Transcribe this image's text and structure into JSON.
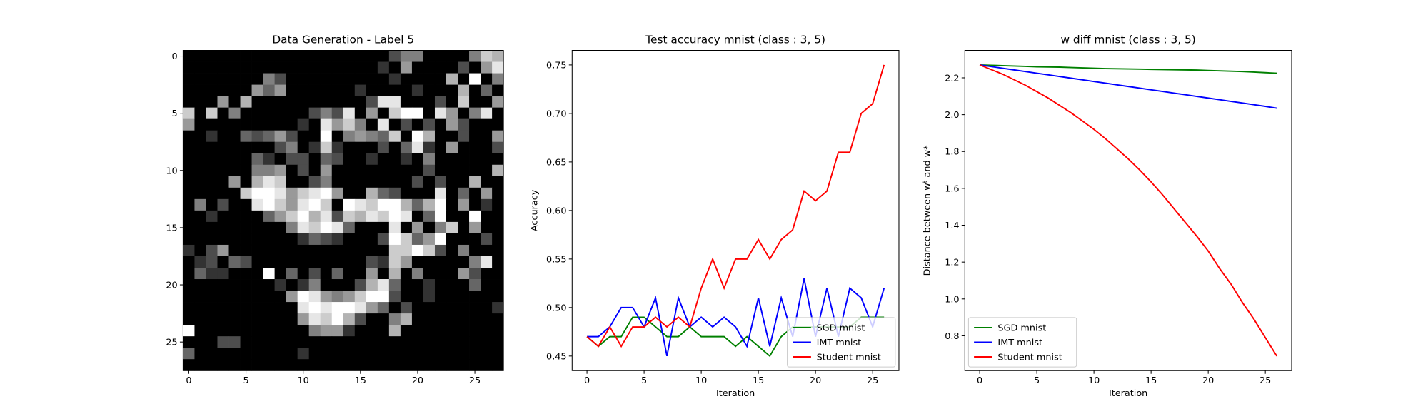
{
  "chart_data": [
    {
      "type": "heatmap",
      "title": "Data Generation - Label 5",
      "colormap": "gray",
      "vlim": [
        0,
        1
      ],
      "xlim": [
        -0.5,
        27.5
      ],
      "ylim": [
        27.5,
        -0.5
      ],
      "xticks": [
        0,
        5,
        10,
        15,
        20,
        25
      ],
      "yticks": [
        0,
        5,
        10,
        15,
        20,
        25
      ],
      "z": [
        [
          0,
          0,
          0,
          0,
          0,
          0,
          0,
          0,
          0,
          0,
          0,
          0,
          0,
          0,
          0,
          0,
          0,
          0,
          0.3,
          0.5,
          0.5,
          0,
          0,
          0,
          0,
          0.5,
          0.8,
          0.7
        ],
        [
          0,
          0,
          0,
          0,
          0,
          0,
          0,
          0,
          0,
          0,
          0,
          0,
          0,
          0,
          0,
          0,
          0,
          0.2,
          0,
          0.6,
          0,
          0,
          0,
          0,
          0.3,
          0,
          0.6,
          0.9
        ],
        [
          0,
          0,
          0,
          0,
          0,
          0,
          0,
          0.5,
          0.3,
          0,
          0,
          0,
          0,
          0,
          0,
          0,
          0,
          0,
          0.2,
          0,
          0,
          0,
          0,
          0.7,
          0,
          1,
          0,
          0.5
        ],
        [
          0,
          0,
          0,
          0,
          0,
          0,
          0.6,
          0.4,
          0.6,
          0,
          0,
          0,
          0,
          0,
          0,
          0.2,
          0,
          0,
          0,
          0,
          0.2,
          0,
          0,
          0,
          0.7,
          0,
          0.4,
          0
        ],
        [
          0,
          0,
          0,
          0.6,
          0,
          0.7,
          0,
          0,
          0,
          0,
          0,
          0,
          0,
          0,
          0,
          0,
          0.3,
          0.9,
          0.9,
          0,
          0,
          0,
          0.3,
          0,
          0.8,
          0,
          0,
          0.6
        ],
        [
          0.8,
          0,
          0.8,
          0,
          0.5,
          0,
          0,
          0,
          0,
          0,
          0,
          0.3,
          0.5,
          0.3,
          0.9,
          0,
          0.6,
          0,
          0.8,
          1,
          1,
          0,
          0.9,
          0.6,
          0,
          0.5,
          0.9,
          0
        ],
        [
          0.6,
          0,
          0,
          0,
          0,
          0,
          0,
          0,
          0,
          0,
          0.2,
          0,
          0.9,
          0.6,
          0.8,
          0.5,
          0,
          0.9,
          0,
          0.3,
          0,
          0.3,
          0,
          0.6,
          0.3,
          0,
          0,
          0
        ],
        [
          0,
          0,
          0.2,
          0,
          0,
          0.4,
          0.3,
          0.4,
          0.6,
          0.3,
          0,
          0,
          1,
          0,
          0.5,
          0.6,
          0.5,
          0.4,
          0.8,
          0,
          1,
          0.7,
          0,
          0,
          0.3,
          0,
          0,
          0.6
        ],
        [
          0,
          0,
          0,
          0,
          0,
          0,
          0,
          0,
          0.3,
          0.5,
          0,
          0.2,
          0.8,
          0.2,
          0,
          0,
          0,
          0.3,
          0,
          0.4,
          0.9,
          0.2,
          0,
          0.6,
          0,
          0,
          0,
          0.3
        ],
        [
          0,
          0,
          0,
          0,
          0,
          0,
          0.4,
          0.2,
          0,
          0.3,
          0.3,
          0,
          0.4,
          0.3,
          0,
          0,
          0.2,
          0,
          0,
          0.2,
          0,
          0.5,
          0,
          0,
          0,
          0,
          0,
          0
        ],
        [
          0,
          0,
          0,
          0,
          0,
          0,
          0.5,
          0.5,
          0.6,
          0,
          0.3,
          0,
          0.6,
          0,
          0,
          0,
          0,
          0,
          0,
          0,
          0,
          0.3,
          0,
          0,
          0,
          0,
          0,
          0.7
        ],
        [
          0,
          0,
          0,
          0,
          0.6,
          0,
          0.7,
          0.9,
          0.8,
          0,
          0,
          0.3,
          0.5,
          0,
          0,
          0,
          0,
          0,
          0,
          0,
          0.3,
          0,
          0.3,
          0,
          0,
          0.7,
          0,
          0
        ],
        [
          0,
          0,
          0,
          0,
          0,
          0.8,
          1,
          1,
          0.9,
          0.6,
          0.8,
          0.9,
          1,
          0.6,
          0,
          0,
          0.7,
          0.4,
          0.3,
          0,
          0,
          0,
          0.9,
          0,
          0.4,
          0,
          0.6,
          0
        ],
        [
          0,
          0.5,
          0,
          0.3,
          0,
          0,
          0.9,
          1,
          0.8,
          0.6,
          0.9,
          1,
          0.8,
          0,
          1,
          0.9,
          0.8,
          1,
          1,
          0.7,
          0.4,
          0.7,
          1,
          0,
          0.6,
          0,
          0.2,
          0
        ],
        [
          0,
          0,
          0.2,
          0,
          0,
          0,
          0,
          0.4,
          0.6,
          0.8,
          1,
          0.7,
          0.9,
          0.3,
          0.8,
          0.7,
          0.9,
          0.8,
          1,
          0.9,
          0,
          0.4,
          1,
          0,
          0,
          1,
          0,
          0
        ],
        [
          0,
          0,
          0,
          0,
          0,
          0,
          0,
          0,
          0,
          0.5,
          0.9,
          0.8,
          1,
          0.9,
          0.4,
          0,
          0,
          0,
          0.9,
          0,
          0.6,
          0,
          0.5,
          0.8,
          0,
          0.6,
          0,
          0
        ],
        [
          0,
          0,
          0,
          0,
          0,
          0,
          0,
          0,
          0,
          0,
          0.2,
          0.4,
          0.3,
          0.2,
          0,
          0,
          0,
          0.3,
          1,
          0.8,
          0.4,
          0.6,
          1,
          0,
          0,
          0,
          0.3,
          0
        ],
        [
          0.2,
          0,
          0.3,
          0.6,
          0,
          0,
          0,
          0,
          0,
          0,
          0,
          0,
          0,
          0,
          0,
          0,
          0,
          0,
          0.8,
          0.8,
          1,
          0.8,
          0.3,
          0,
          0.5,
          0,
          0,
          0
        ],
        [
          0,
          0.2,
          0.3,
          0,
          0.4,
          0.3,
          0,
          0,
          0,
          0,
          0,
          0,
          0,
          0,
          0,
          0,
          0.3,
          0.2,
          0.8,
          0.6,
          0,
          0,
          0,
          0,
          0,
          0.5,
          0.9,
          0
        ],
        [
          0,
          0.4,
          0.2,
          0.2,
          0,
          0,
          0,
          1,
          0,
          0.4,
          0,
          0.3,
          0,
          0.4,
          0,
          0,
          0.6,
          0,
          0.7,
          0,
          0.5,
          0,
          0,
          0,
          0.6,
          0.3,
          0,
          0
        ],
        [
          0,
          0,
          0,
          0,
          0,
          0,
          0,
          0,
          0.2,
          0,
          0.2,
          0.5,
          0,
          0,
          0,
          0.3,
          0.7,
          0.9,
          0.4,
          0,
          0,
          0.2,
          0,
          0,
          0,
          0.4,
          0,
          0
        ],
        [
          0,
          0,
          0,
          0,
          0,
          0,
          0,
          0,
          0,
          0.6,
          1,
          0.9,
          0.6,
          0.5,
          0.6,
          0.8,
          1,
          1,
          0.3,
          0,
          0,
          0.2,
          0,
          0,
          0,
          0,
          0,
          0
        ],
        [
          0,
          0,
          0,
          0,
          0,
          0,
          0,
          0,
          0,
          0,
          0.9,
          1,
          0.9,
          1,
          1,
          0.9,
          0.6,
          0.4,
          0,
          0.3,
          0,
          0,
          0,
          0,
          0,
          0,
          0,
          0.2
        ],
        [
          0,
          0,
          0,
          0,
          0,
          0,
          0,
          0,
          0,
          0,
          0.6,
          0.9,
          0.8,
          1,
          0.7,
          0.3,
          0,
          0,
          0.5,
          0.7,
          0,
          0,
          0,
          0,
          0,
          0,
          0,
          0
        ],
        [
          1,
          0,
          0,
          0,
          0,
          0,
          0,
          0,
          0,
          0,
          0,
          0.5,
          0.6,
          0.6,
          0.2,
          0,
          0,
          0,
          0.7,
          0,
          0,
          0,
          0,
          0,
          0,
          0,
          0,
          0
        ],
        [
          0,
          0,
          0,
          0.3,
          0.3,
          0,
          0,
          0,
          0,
          0,
          0,
          0,
          0,
          0,
          0,
          0,
          0,
          0,
          0,
          0,
          0,
          0,
          0,
          0,
          0,
          0,
          0,
          0
        ],
        [
          0.4,
          0,
          0,
          0,
          0,
          0,
          0,
          0,
          0,
          0,
          0.2,
          0,
          0,
          0,
          0,
          0,
          0,
          0,
          0,
          0,
          0,
          0,
          0,
          0,
          0,
          0,
          0,
          0
        ],
        [
          0,
          0,
          0,
          0,
          0,
          0,
          0,
          0,
          0,
          0,
          0,
          0,
          0,
          0,
          0,
          0,
          0,
          0,
          0,
          0,
          0,
          0,
          0,
          0,
          0,
          0,
          0,
          0
        ]
      ]
    },
    {
      "type": "line",
      "title": "Test accuracy mnist (class : 3, 5)",
      "xlabel": "Iteration",
      "ylabel": "Accuracy",
      "legend": "lower right",
      "xlim": [
        -1.3,
        27.3
      ],
      "ylim": [
        0.435,
        0.765
      ],
      "xticks": [
        0,
        5,
        10,
        15,
        20,
        25
      ],
      "yticks": [
        {
          "value": 0.45,
          "label": "0.45"
        },
        {
          "value": 0.5,
          "label": "0.50"
        },
        {
          "value": 0.55,
          "label": "0.55"
        },
        {
          "value": 0.6,
          "label": "0.60"
        },
        {
          "value": 0.65,
          "label": "0.65"
        },
        {
          "value": 0.7,
          "label": "0.70"
        },
        {
          "value": 0.75,
          "label": "0.75"
        }
      ],
      "x": [
        0,
        1,
        2,
        3,
        4,
        5,
        6,
        7,
        8,
        9,
        10,
        11,
        12,
        13,
        14,
        15,
        16,
        17,
        18,
        19,
        20,
        21,
        22,
        23,
        24,
        25,
        26
      ],
      "series": [
        {
          "name": "SGD mnist",
          "color": "#008000",
          "values": [
            0.47,
            0.46,
            0.47,
            0.47,
            0.49,
            0.49,
            0.48,
            0.47,
            0.47,
            0.48,
            0.47,
            0.47,
            0.47,
            0.46,
            0.47,
            0.46,
            0.45,
            0.47,
            0.48,
            0.48,
            0.48,
            0.48,
            0.48,
            0.48,
            0.49,
            0.49,
            0.49
          ]
        },
        {
          "name": "IMT mnist",
          "color": "#0000ff",
          "values": [
            0.47,
            0.47,
            0.48,
            0.5,
            0.5,
            0.48,
            0.51,
            0.45,
            0.51,
            0.48,
            0.49,
            0.48,
            0.49,
            0.48,
            0.46,
            0.51,
            0.46,
            0.51,
            0.47,
            0.53,
            0.47,
            0.52,
            0.47,
            0.52,
            0.51,
            0.48,
            0.52
          ]
        },
        {
          "name": "Student mnist",
          "color": "#ff0000",
          "values": [
            0.47,
            0.46,
            0.48,
            0.46,
            0.48,
            0.48,
            0.49,
            0.48,
            0.49,
            0.48,
            0.52,
            0.55,
            0.52,
            0.55,
            0.55,
            0.57,
            0.55,
            0.57,
            0.58,
            0.62,
            0.61,
            0.62,
            0.66,
            0.66,
            0.7,
            0.71,
            0.75
          ]
        }
      ]
    },
    {
      "type": "line",
      "title": "w diff mnist (class : 3, 5)",
      "xlabel": "Iteration",
      "ylabel": "Distance between wᵗ and w*",
      "legend": "lower left",
      "xlim": [
        -1.3,
        27.3
      ],
      "ylim": [
        0.611,
        2.349
      ],
      "xticks": [
        0,
        5,
        10,
        15,
        20,
        25
      ],
      "yticks": [
        {
          "value": 0.8,
          "label": "0.8"
        },
        {
          "value": 1,
          "label": "1.0"
        },
        {
          "value": 1.2,
          "label": "1.2"
        },
        {
          "value": 1.4,
          "label": "1.4"
        },
        {
          "value": 1.6,
          "label": "1.6"
        },
        {
          "value": 1.8,
          "label": "1.8"
        },
        {
          "value": 2,
          "label": "2.0"
        },
        {
          "value": 2.2,
          "label": "2.2"
        }
      ],
      "x": [
        0,
        1,
        2,
        3,
        4,
        5,
        6,
        7,
        8,
        9,
        10,
        11,
        12,
        13,
        14,
        15,
        16,
        17,
        18,
        19,
        20,
        21,
        22,
        23,
        24,
        25,
        26
      ],
      "series": [
        {
          "name": "SGD mnist",
          "color": "#008000",
          "values": [
            2.27,
            2.268,
            2.266,
            2.264,
            2.262,
            2.26,
            2.259,
            2.258,
            2.256,
            2.254,
            2.252,
            2.25,
            2.249,
            2.248,
            2.247,
            2.246,
            2.245,
            2.244,
            2.243,
            2.242,
            2.24,
            2.238,
            2.236,
            2.234,
            2.231,
            2.228,
            2.225
          ]
        },
        {
          "name": "IMT mnist",
          "color": "#0000ff",
          "values": [
            2.27,
            2.261,
            2.252,
            2.243,
            2.234,
            2.225,
            2.216,
            2.207,
            2.198,
            2.189,
            2.18,
            2.171,
            2.162,
            2.153,
            2.144,
            2.135,
            2.126,
            2.117,
            2.108,
            2.099,
            2.09,
            2.081,
            2.072,
            2.063,
            2.054,
            2.045,
            2.035
          ]
        },
        {
          "name": "Student mnist",
          "color": "#ff0000",
          "values": [
            2.27,
            2.245,
            2.22,
            2.19,
            2.16,
            2.125,
            2.09,
            2.05,
            2.01,
            1.965,
            1.92,
            1.87,
            1.815,
            1.76,
            1.7,
            1.635,
            1.565,
            1.49,
            1.415,
            1.34,
            1.26,
            1.165,
            1.08,
            0.98,
            0.89,
            0.79,
            0.69
          ]
        }
      ]
    }
  ]
}
